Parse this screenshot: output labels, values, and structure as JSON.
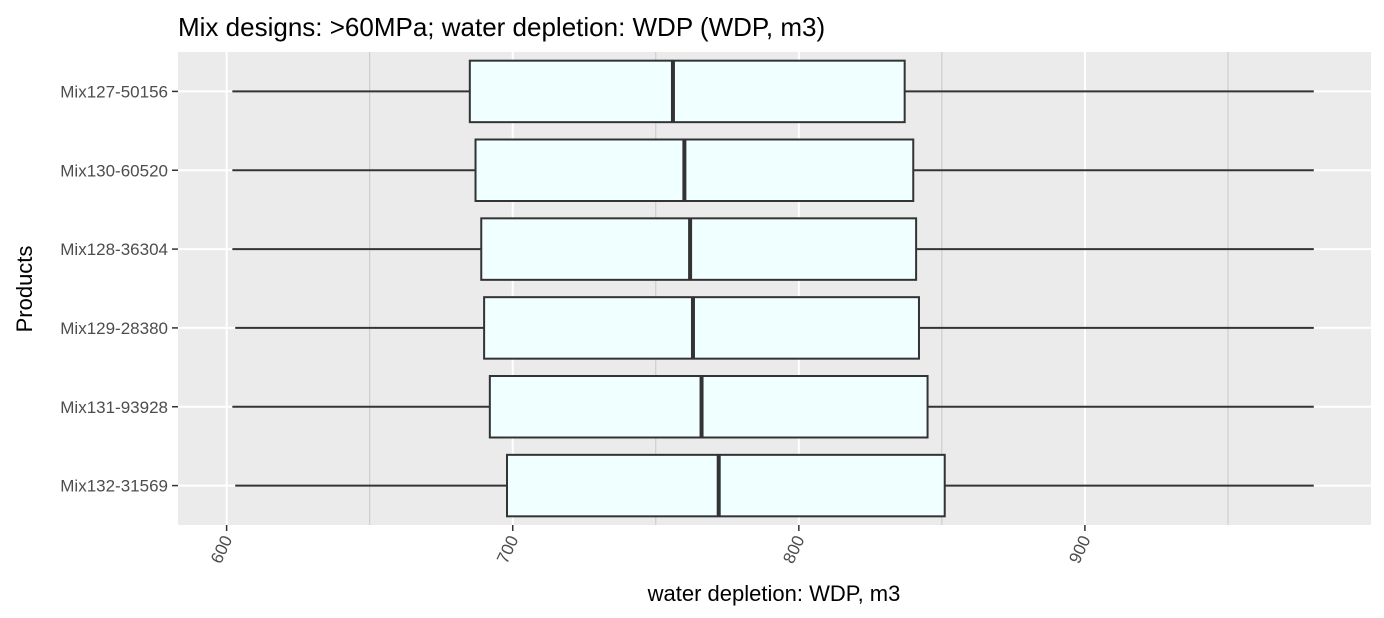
{
  "chart_data": {
    "type": "boxplot",
    "orientation": "horizontal",
    "title": "Mix designs: >60MPa; water depletion: WDP (WDP, m3)",
    "xlabel": "water depletion: WDP, m3",
    "ylabel": "Products",
    "xlim": [
      583,
      1000
    ],
    "x_ticks": [
      600,
      700,
      800,
      900
    ],
    "x_tick_labels": [
      "600",
      "700",
      "800",
      "900"
    ],
    "grid": true,
    "legend": "none",
    "box_fill": "#f0ffff",
    "box_stroke": "#333333",
    "panel_background": "#ebebeb",
    "gridline_color": "#ffffff",
    "categories": [
      "Mix127-50156",
      "Mix130-60520",
      "Mix128-36304",
      "Mix129-28380",
      "Mix131-93928",
      "Mix132-31569"
    ],
    "series": [
      {
        "name": "Mix127-50156",
        "min": 602,
        "q1": 685,
        "median": 756,
        "q3": 837,
        "max": 980
      },
      {
        "name": "Mix130-60520",
        "min": 602,
        "q1": 687,
        "median": 760,
        "q3": 840,
        "max": 980
      },
      {
        "name": "Mix128-36304",
        "min": 602,
        "q1": 689,
        "median": 762,
        "q3": 841,
        "max": 980
      },
      {
        "name": "Mix129-28380",
        "min": 603,
        "q1": 690,
        "median": 763,
        "q3": 842,
        "max": 980
      },
      {
        "name": "Mix131-93928",
        "min": 602,
        "q1": 692,
        "median": 766,
        "q3": 845,
        "max": 980
      },
      {
        "name": "Mix132-31569",
        "min": 603,
        "q1": 698,
        "median": 772,
        "q3": 851,
        "max": 980
      }
    ]
  }
}
